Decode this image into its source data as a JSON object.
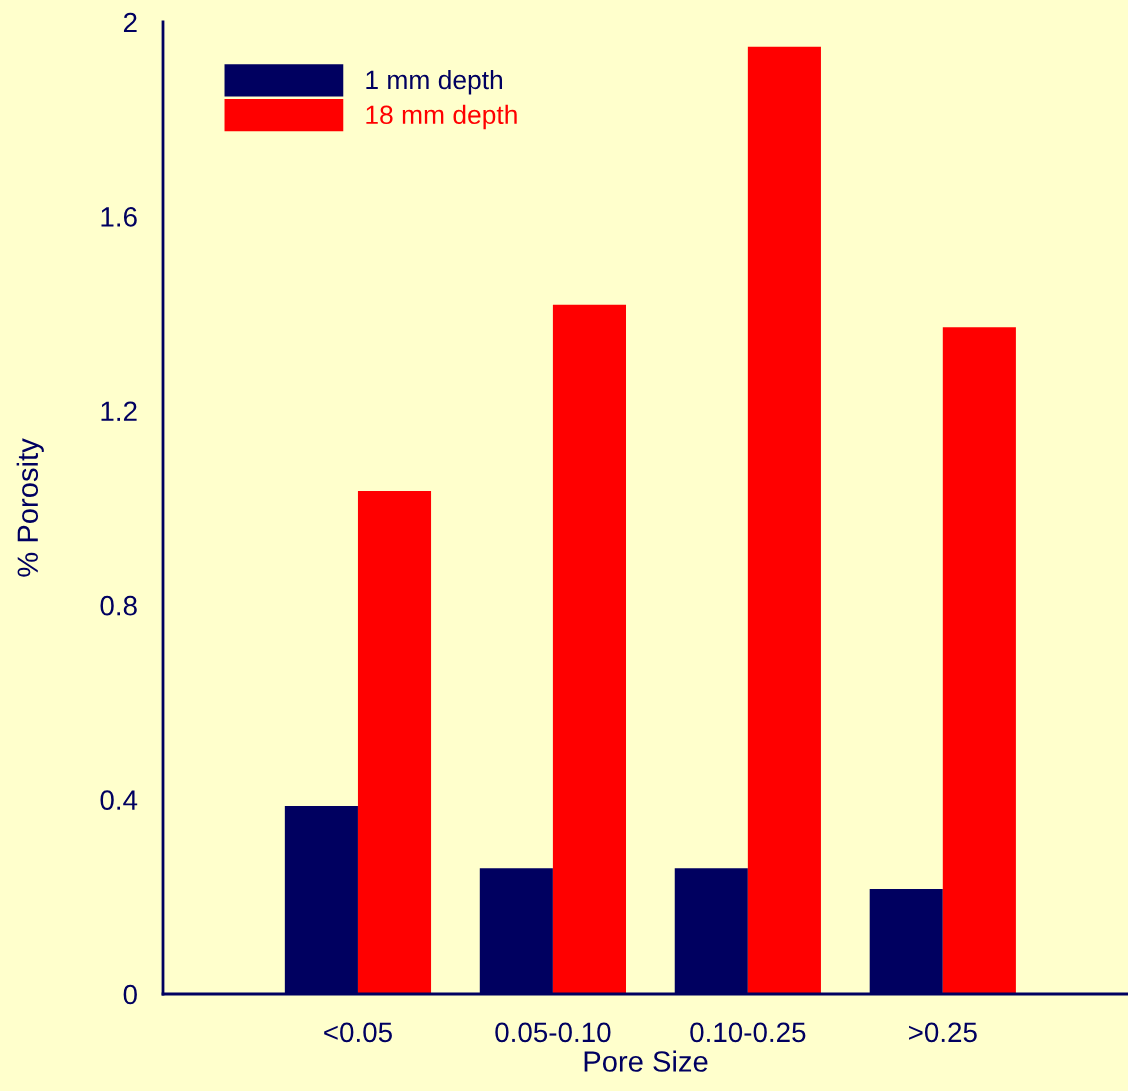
{
  "chart_data": {
    "type": "bar",
    "xlabel": "Pore Size",
    "ylabel": "% Porosity",
    "categories": [
      "<0.05",
      "0.05-0.10",
      "0.10-0.25",
      ">0.25"
    ],
    "series": [
      {
        "name": "1 mm depth",
        "color": "#000060",
        "values": [
          0.387,
          0.259,
          0.259,
          0.216
        ]
      },
      {
        "name": "18 mm depth",
        "color": "#ff0000",
        "values": [
          1.035,
          1.418,
          1.949,
          1.372
        ]
      }
    ],
    "ylim": [
      0,
      2
    ],
    "yticks": [
      0,
      0.4,
      0.8,
      1.2,
      1.6,
      2
    ],
    "grid": false,
    "legend": "top left"
  }
}
